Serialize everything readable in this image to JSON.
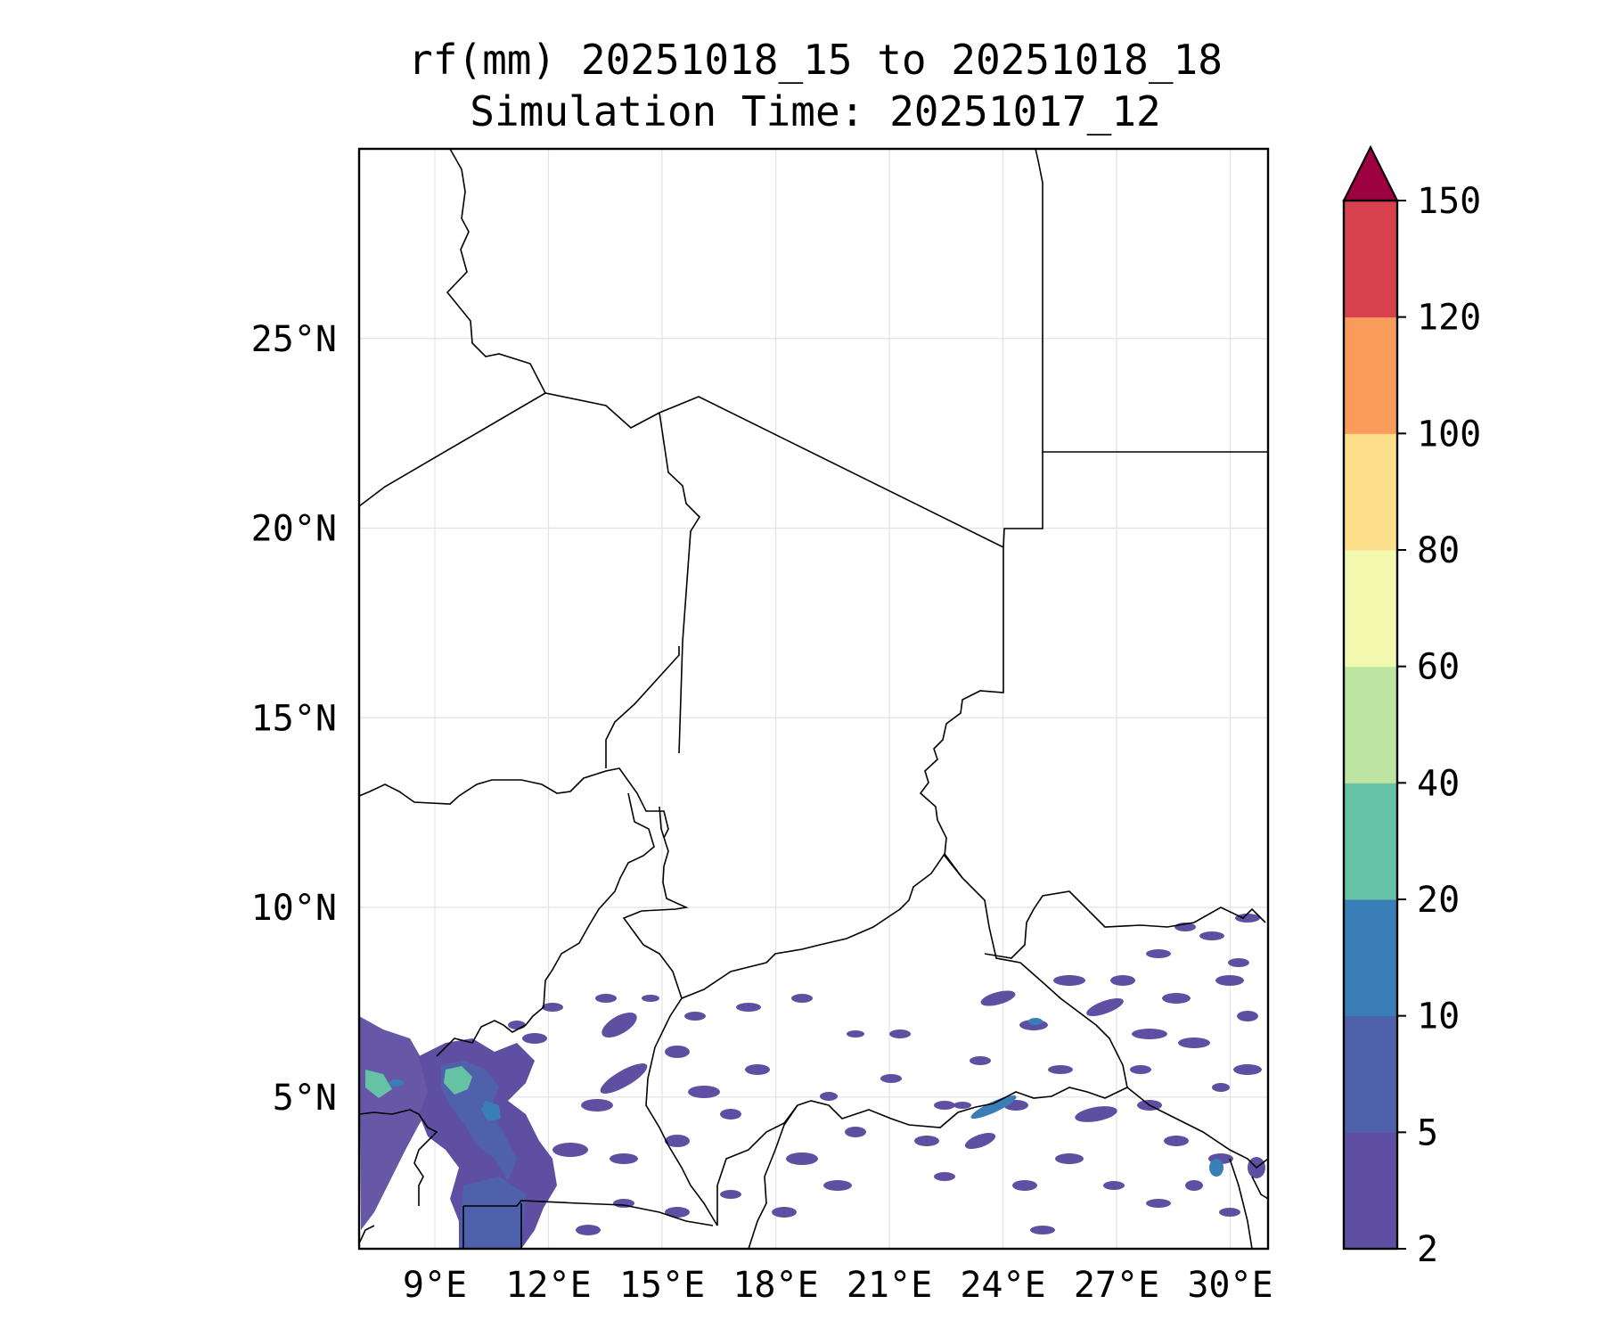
{
  "title": {
    "line1": "rf(mm) 20251018_15 to 20251018_18",
    "line2": "Simulation Time: 20251017_12"
  },
  "map": {
    "lon_range": [
      7,
      31
    ],
    "lat_range": [
      1,
      30
    ],
    "lat_ticks": [
      {
        "value": 5,
        "label": "5°N"
      },
      {
        "value": 10,
        "label": "10°N"
      },
      {
        "value": 15,
        "label": "15°N"
      },
      {
        "value": 20,
        "label": "20°N"
      },
      {
        "value": 25,
        "label": "25°N"
      }
    ],
    "lon_ticks": [
      {
        "value": 9,
        "label": "9°E"
      },
      {
        "value": 12,
        "label": "12°E"
      },
      {
        "value": 15,
        "label": "15°E"
      },
      {
        "value": 18,
        "label": "18°E"
      },
      {
        "value": 21,
        "label": "21°E"
      },
      {
        "value": 24,
        "label": "24°E"
      },
      {
        "value": 27,
        "label": "27°E"
      },
      {
        "value": 30,
        "label": "30°E"
      }
    ],
    "gridlines": true
  },
  "colorbar": {
    "levels": [
      "2",
      "5",
      "10",
      "20",
      "40",
      "60",
      "80",
      "100",
      "120",
      "150"
    ],
    "colors": [
      "#5e4fa2",
      "#4f61aa",
      "#3a7eb8",
      "#66c2a5",
      "#bde4a0",
      "#f2f9ae",
      "#fddf8b",
      "#f99c59",
      "#d7414e"
    ],
    "extend_color": "#9e0142",
    "extend": "max"
  }
}
